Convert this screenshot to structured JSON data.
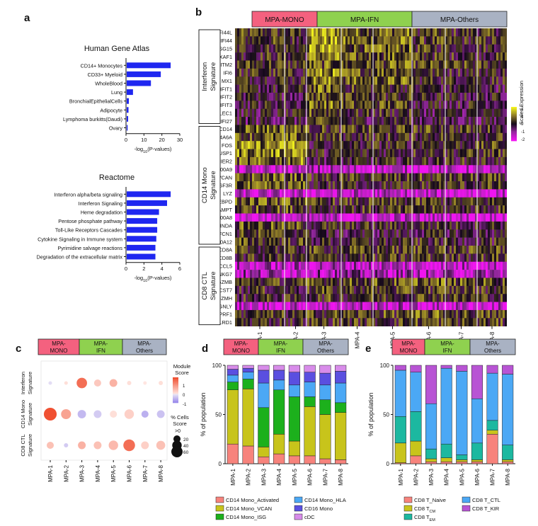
{
  "panel_letters": [
    "a",
    "b",
    "c",
    "d",
    "e"
  ],
  "colors": {
    "mono": "#f4617f",
    "ifn": "#8fd14f",
    "others": "#a9b2c3",
    "bar_blue": "#1f27f0",
    "dot_red": "#f05a3c",
    "dot_purple": "#9f8cf0"
  },
  "group_headers": [
    "MPA-MONO",
    "MPA-IFN",
    "MPA-Others"
  ],
  "group_headers_short": [
    [
      "MPA-",
      "MONO"
    ],
    [
      "MPA-",
      "IFN"
    ],
    [
      "MPA-",
      "Others"
    ]
  ],
  "samples": [
    "MPA-1",
    "MPA-2",
    "MPA-3",
    "MPA-4",
    "MPA-5",
    "MPA-6",
    "MPA-7",
    "MPA-8"
  ],
  "panel_a": {
    "charts": [
      {
        "type": "bar",
        "orientation": "horizontal",
        "title": "Human Gene Atlas",
        "categories": [
          "CD14+ Monocytes",
          "CD33+ Myeloid",
          "WholeBlood",
          "Lung",
          "BronchialEpithelialCells",
          "Adipocyte",
          "Lymphoma burkitts(Daudi)",
          "Ovary"
        ],
        "values": [
          24.5,
          19,
          13.5,
          3.5,
          1.2,
          1.0,
          0.8,
          0.5
        ],
        "xlim": [
          0,
          30
        ],
        "xticks": [
          0,
          10,
          20,
          30
        ],
        "xlabel": "-log10(P-values)"
      },
      {
        "type": "bar",
        "orientation": "horizontal",
        "title": "Reactome",
        "categories": [
          "Interferon alpha/beta signaling",
          "Interferon Signaling",
          "Heme degradation",
          "Pentose phosphate pathway",
          "Toll-Like Receptors Cascades",
          "Cytokine Signaling in Immune system",
          "Pyrimidine salvage reactions",
          "Degradation of the extracellular matrix"
        ],
        "values": [
          4.9,
          4.5,
          3.6,
          3.4,
          3.4,
          3.3,
          3.2,
          3.2
        ],
        "xlim": [
          0,
          6
        ],
        "xticks": [
          0,
          2,
          4,
          6
        ],
        "xlabel": "-log10(P-values)"
      }
    ]
  },
  "panel_b": {
    "signatures": [
      {
        "name": [
          "Interferon",
          "Signature"
        ],
        "genes": [
          "IFI44L",
          "IFI44",
          "ISG15",
          "XAF1",
          "IFITM2",
          "IFI6",
          "MX1",
          "IFIT1",
          "IFIT2",
          "IFIT3",
          "SIGLEC1",
          "IFI27"
        ]
      },
      {
        "name": [
          "CD14 Mono",
          "Signature"
        ],
        "genes": [
          "CD14",
          "MS4A6A",
          "FOS",
          "DUSP1",
          "IER2",
          "S100A9",
          "VCAN",
          "CSF3R",
          "LYZ",
          "CEBPD",
          "NAMPT",
          "S100A8",
          "MNDA",
          "FCN1",
          "S100A12"
        ]
      },
      {
        "name": [
          "CD8 CTL",
          "Signature"
        ],
        "genes": [
          "CD8A",
          "CD8B",
          "CCL5",
          "NKG7",
          "GZMB",
          "CST7",
          "GZMH",
          "GNLY",
          "PRF1",
          "KLRD1"
        ]
      }
    ],
    "legend_title": "Scaled Expression",
    "legend_ticks": [
      "2",
      "1",
      "0",
      "-1",
      "-2"
    ]
  },
  "panel_c": {
    "chart_data": {
      "type": "dotplot",
      "rows": [
        [
          "Interferon",
          "Signature"
        ],
        [
          "CD14 Mono",
          "Signature"
        ],
        [
          "CD8 CTL",
          "Signature"
        ]
      ],
      "score": [
        [
          -0.1,
          0.1,
          1.6,
          0.4,
          0.7,
          0.1,
          0.0,
          0.1
        ],
        [
          2.0,
          0.9,
          -0.5,
          -0.3,
          0.1,
          0.3,
          -0.6,
          -0.4
        ],
        [
          0.5,
          -0.3,
          0.7,
          0.5,
          0.6,
          1.6,
          0.3,
          0.5
        ]
      ],
      "pct": [
        [
          3,
          3,
          50,
          20,
          25,
          5,
          3,
          5
        ],
        [
          80,
          45,
          30,
          25,
          20,
          40,
          20,
          25
        ],
        [
          20,
          5,
          25,
          25,
          40,
          65,
          25,
          35
        ]
      ]
    },
    "legend_module": {
      "title": [
        "Module",
        "Score"
      ],
      "ticks": [
        "1",
        "0",
        "-1"
      ]
    },
    "legend_size": {
      "title": [
        "% Cells",
        "Score"
      ],
      "threshold": ">0",
      "ticks": [
        "20",
        "40",
        "60"
      ]
    }
  },
  "panel_d": {
    "chart_data": {
      "type": "bar",
      "stacked": true,
      "ylabel": "% of population",
      "yticks": [
        "0",
        "50",
        "100"
      ],
      "series": [
        {
          "name": "CD14 Mono_Activated",
          "color": "#f7837c",
          "values": [
            20,
            18,
            7,
            10,
            8,
            8,
            5,
            4
          ]
        },
        {
          "name": "CD14 Mono_VCAN",
          "color": "#c8c41b",
          "values": [
            55,
            58,
            10,
            20,
            15,
            50,
            45,
            48
          ]
        },
        {
          "name": "CD14 Mono_ISG",
          "color": "#1cb01c",
          "values": [
            8,
            10,
            40,
            45,
            45,
            10,
            15,
            10
          ]
        },
        {
          "name": "CD14 Mono_HLA",
          "color": "#4ba8f5",
          "values": [
            7,
            7,
            25,
            10,
            12,
            15,
            15,
            20
          ]
        },
        {
          "name": "CD16 Mono",
          "color": "#5a4fe0",
          "values": [
            6,
            4,
            13,
            10,
            13,
            10,
            12,
            12
          ]
        },
        {
          "name": "cDC",
          "color": "#d88cea",
          "values": [
            4,
            3,
            5,
            5,
            7,
            7,
            8,
            6
          ]
        }
      ]
    }
  },
  "panel_e": {
    "chart_data": {
      "type": "bar",
      "stacked": true,
      "ylabel": "% of population",
      "yticks": [
        "0",
        "50",
        "100"
      ],
      "series": [
        {
          "name": "CD8 T_Naive",
          "color": "#f7837c",
          "values": [
            1,
            8,
            2,
            2,
            2,
            2,
            30,
            2
          ]
        },
        {
          "name": "CD8 T_CM",
          "color": "#c8c41b",
          "values": [
            20,
            15,
            3,
            4,
            2,
            2,
            4,
            2
          ]
        },
        {
          "name": "CD8 T_EM",
          "color": "#1cb8a0",
          "values": [
            27,
            30,
            10,
            14,
            5,
            17,
            10,
            15
          ]
        },
        {
          "name": "CD8 T_CTL",
          "color": "#4ba8f5",
          "values": [
            47,
            40,
            46,
            77,
            85,
            45,
            48,
            72
          ]
        },
        {
          "name": "CD8 T_KIR",
          "color": "#b854d4",
          "values": [
            5,
            7,
            39,
            3,
            6,
            34,
            8,
            9
          ]
        }
      ]
    }
  }
}
